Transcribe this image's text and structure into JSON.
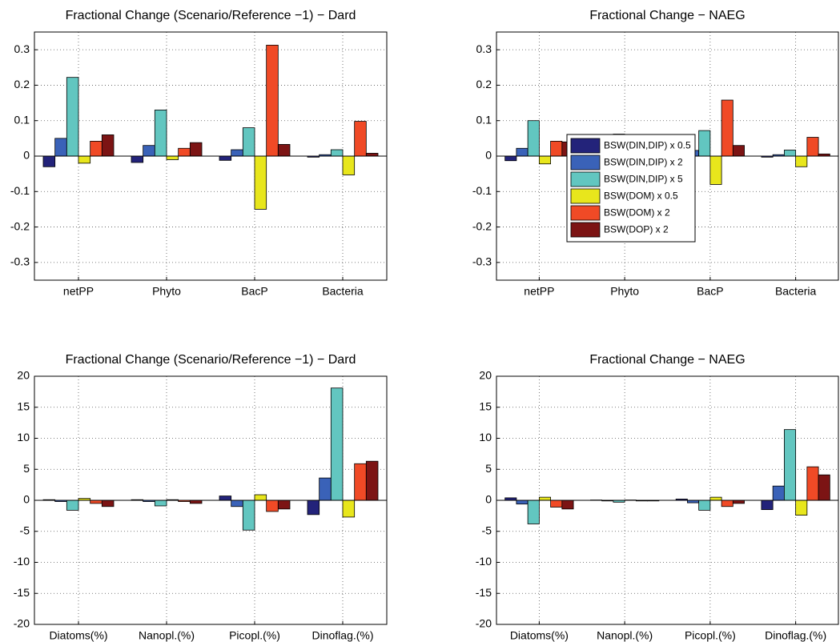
{
  "chart_data": [
    {
      "type": "bar",
      "title": "Fractional Change (Scenario/Reference −1) − Dard",
      "categories": [
        "netPP",
        "Phyto",
        "BacP",
        "Bacteria"
      ],
      "ylim": [
        -0.35,
        0.35
      ],
      "yticks": [
        -0.3,
        -0.2,
        -0.1,
        0,
        0.1,
        0.2,
        0.3
      ],
      "grid": true,
      "series": [
        {
          "color": "#23237a",
          "values": [
            -0.03,
            -0.018,
            -0.012,
            -0.003
          ]
        },
        {
          "color": "#3a62b8",
          "values": [
            0.05,
            0.03,
            0.018,
            0.004
          ]
        },
        {
          "color": "#62c6c0",
          "values": [
            0.222,
            0.13,
            0.08,
            0.018
          ]
        },
        {
          "color": "#e8e61c",
          "values": [
            -0.02,
            -0.01,
            -0.15,
            -0.053
          ]
        },
        {
          "color": "#f04a26",
          "values": [
            0.042,
            0.022,
            0.313,
            0.098
          ]
        },
        {
          "color": "#7c1414",
          "values": [
            0.06,
            0.038,
            0.033,
            0.008
          ]
        }
      ]
    },
    {
      "type": "bar",
      "title": "Fractional Change  − NAEG",
      "categories": [
        "netPP",
        "Phyto",
        "BacP",
        "Bacteria"
      ],
      "ylim": [
        -0.35,
        0.35
      ],
      "yticks": [
        -0.3,
        -0.2,
        -0.1,
        0,
        0.1,
        0.2,
        0.3
      ],
      "grid": true,
      "legend": "center",
      "series": [
        {
          "name": "BSW(DIN,DIP) x 0.5",
          "color": "#23237a",
          "values": [
            -0.013,
            -0.008,
            -0.01,
            -0.003
          ]
        },
        {
          "name": "BSW(DIN,DIP) x 2",
          "color": "#3a62b8",
          "values": [
            0.022,
            0.015,
            0.016,
            0.004
          ]
        },
        {
          "name": "BSW(DIN,DIP) x 5",
          "color": "#62c6c0",
          "values": [
            0.1,
            0.062,
            0.072,
            0.017
          ]
        },
        {
          "name": "BSW(DOM) x 0.5",
          "color": "#e8e61c",
          "values": [
            -0.022,
            -0.012,
            -0.08,
            -0.03
          ]
        },
        {
          "name": "BSW(DOM) x 2",
          "color": "#f04a26",
          "values": [
            0.042,
            0.024,
            0.158,
            0.053
          ]
        },
        {
          "name": "BSW(DOP) x 2",
          "color": "#7c1414",
          "values": [
            0.04,
            0.025,
            0.03,
            0.006
          ]
        }
      ]
    },
    {
      "type": "bar",
      "title": "Fractional Change (Scenario/Reference −1) − Dard",
      "categories": [
        "Diatoms(%)",
        "Nanopl.(%)",
        "Picopl.(%)",
        "Dinoflag.(%)"
      ],
      "ylim": [
        -20,
        20
      ],
      "yticks": [
        -20,
        -15,
        -10,
        -5,
        0,
        5,
        10,
        15,
        20
      ],
      "grid": true,
      "series": [
        {
          "color": "#23237a",
          "values": [
            0.1,
            0.1,
            0.7,
            -2.3
          ]
        },
        {
          "color": "#3a62b8",
          "values": [
            -0.2,
            -0.2,
            -1.0,
            3.6
          ]
        },
        {
          "color": "#62c6c0",
          "values": [
            -1.6,
            -0.9,
            -4.8,
            18.1
          ]
        },
        {
          "color": "#e8e61c",
          "values": [
            0.3,
            0.1,
            0.9,
            -2.7
          ]
        },
        {
          "color": "#f04a26",
          "values": [
            -0.5,
            -0.2,
            -1.8,
            5.9
          ]
        },
        {
          "color": "#7c1414",
          "values": [
            -1.0,
            -0.5,
            -1.4,
            6.3
          ]
        }
      ]
    },
    {
      "type": "bar",
      "title": "Fractional Change  − NAEG",
      "categories": [
        "Diatoms(%)",
        "Nanopl.(%)",
        "Picopl.(%)",
        "Dinoflag.(%)"
      ],
      "ylim": [
        -20,
        20
      ],
      "yticks": [
        -20,
        -15,
        -10,
        -5,
        0,
        5,
        10,
        15,
        20
      ],
      "grid": true,
      "series": [
        {
          "color": "#23237a",
          "values": [
            0.4,
            0.05,
            0.2,
            -1.5
          ]
        },
        {
          "color": "#3a62b8",
          "values": [
            -0.6,
            -0.1,
            -0.4,
            2.3
          ]
        },
        {
          "color": "#62c6c0",
          "values": [
            -3.8,
            -0.3,
            -1.6,
            11.4
          ]
        },
        {
          "color": "#e8e61c",
          "values": [
            0.5,
            0.05,
            0.5,
            -2.4
          ]
        },
        {
          "color": "#f04a26",
          "values": [
            -1.1,
            -0.1,
            -1.0,
            5.4
          ]
        },
        {
          "color": "#7c1414",
          "values": [
            -1.4,
            -0.1,
            -0.5,
            4.1
          ]
        }
      ]
    }
  ]
}
